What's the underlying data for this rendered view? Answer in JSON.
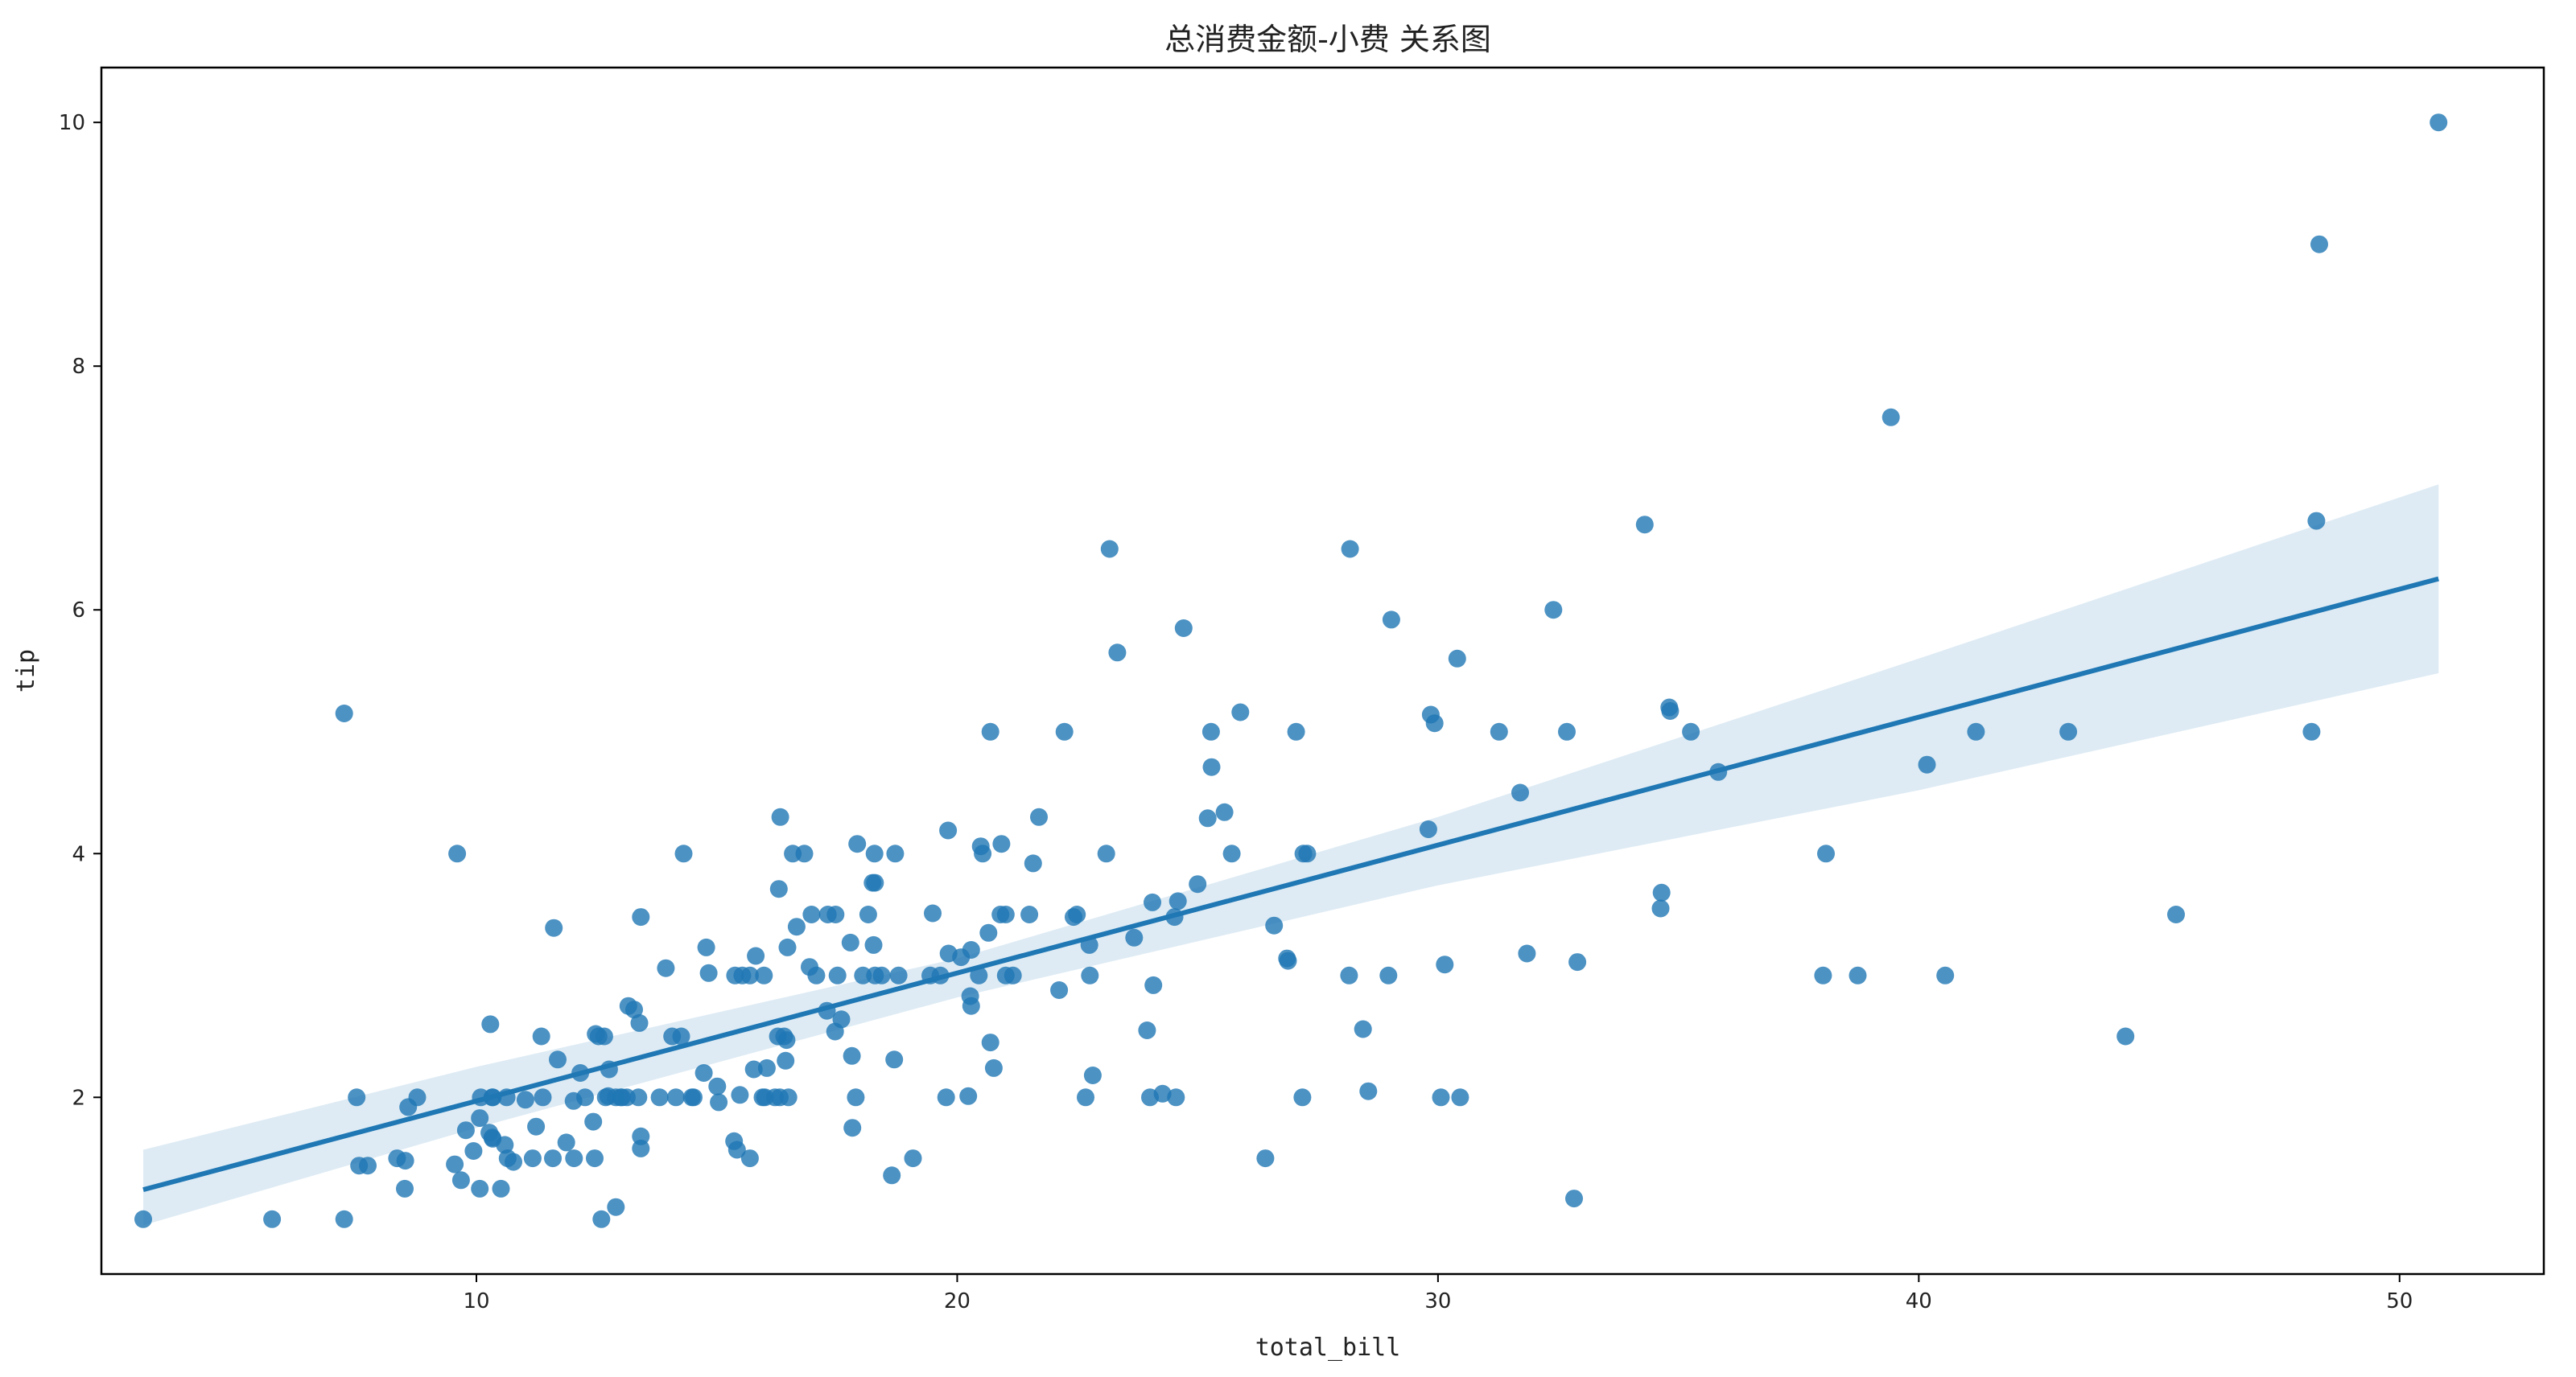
{
  "chart_data": {
    "type": "scatter",
    "title": "总消费金额-小费 关系图",
    "xlabel": "total_bill",
    "ylabel": "tip",
    "xlim": [
      2.2,
      53.0
    ],
    "ylim": [
      0.55,
      10.45
    ],
    "xticks": [
      10,
      20,
      30,
      40,
      50
    ],
    "yticks": [
      2,
      4,
      6,
      8,
      10
    ],
    "grid": false,
    "color": "#1f77b4",
    "regression": {
      "x_range": [
        3.07,
        50.81
      ],
      "intercept": 0.92,
      "slope": 0.105,
      "ci": [
        [
          3.07,
          0.95,
          1.57
        ],
        [
          10,
          1.75,
          2.25
        ],
        [
          20,
          2.82,
          3.14
        ],
        [
          30,
          3.74,
          4.3
        ],
        [
          40,
          4.52,
          5.6
        ],
        [
          50.81,
          5.48,
          7.03
        ]
      ]
    },
    "points": [
      [
        3.07,
        1.0
      ],
      [
        5.75,
        1.0
      ],
      [
        7.25,
        1.0
      ],
      [
        7.25,
        5.15
      ],
      [
        7.51,
        2.0
      ],
      [
        7.56,
        1.44
      ],
      [
        7.74,
        1.44
      ],
      [
        8.35,
        1.5
      ],
      [
        8.51,
        1.25
      ],
      [
        8.52,
        1.48
      ],
      [
        8.58,
        1.92
      ],
      [
        8.77,
        2.0
      ],
      [
        9.55,
        1.45
      ],
      [
        9.6,
        4.0
      ],
      [
        9.68,
        1.32
      ],
      [
        9.78,
        1.73
      ],
      [
        9.94,
        1.56
      ],
      [
        10.07,
        1.83
      ],
      [
        10.07,
        1.25
      ],
      [
        10.09,
        2.0
      ],
      [
        10.27,
        1.71
      ],
      [
        10.29,
        2.6
      ],
      [
        10.33,
        1.67
      ],
      [
        10.33,
        2.0
      ],
      [
        10.34,
        1.66
      ],
      [
        10.34,
        2.0
      ],
      [
        10.51,
        1.25
      ],
      [
        10.59,
        1.61
      ],
      [
        10.63,
        2.0
      ],
      [
        10.65,
        1.5
      ],
      [
        10.77,
        1.47
      ],
      [
        11.02,
        1.98
      ],
      [
        11.17,
        1.5
      ],
      [
        11.24,
        1.76
      ],
      [
        11.35,
        2.5
      ],
      [
        11.38,
        2.0
      ],
      [
        11.59,
        1.5
      ],
      [
        11.61,
        3.39
      ],
      [
        11.69,
        2.31
      ],
      [
        11.87,
        1.63
      ],
      [
        12.02,
        1.97
      ],
      [
        12.03,
        1.5
      ],
      [
        12.16,
        2.2
      ],
      [
        12.26,
        2.0
      ],
      [
        12.43,
        1.8
      ],
      [
        12.46,
        1.5
      ],
      [
        12.48,
        2.52
      ],
      [
        12.54,
        2.5
      ],
      [
        12.6,
        1.0
      ],
      [
        12.66,
        2.5
      ],
      [
        12.69,
        2.0
      ],
      [
        12.74,
        2.01
      ],
      [
        12.76,
        2.23
      ],
      [
        12.9,
        1.1
      ],
      [
        12.9,
        2.0
      ],
      [
        13.0,
        2.0
      ],
      [
        13.03,
        2.0
      ],
      [
        13.13,
        2.0
      ],
      [
        13.16,
        2.75
      ],
      [
        13.28,
        2.72
      ],
      [
        13.37,
        2.0
      ],
      [
        13.39,
        2.61
      ],
      [
        13.42,
        1.58
      ],
      [
        13.42,
        1.68
      ],
      [
        13.42,
        3.48
      ],
      [
        13.81,
        2.0
      ],
      [
        13.94,
        3.06
      ],
      [
        14.07,
        2.5
      ],
      [
        14.15,
        2.0
      ],
      [
        14.26,
        2.5
      ],
      [
        14.31,
        4.0
      ],
      [
        14.48,
        2.0
      ],
      [
        14.52,
        2.0
      ],
      [
        14.73,
        2.2
      ],
      [
        14.78,
        3.23
      ],
      [
        14.83,
        3.02
      ],
      [
        15.01,
        2.09
      ],
      [
        15.04,
        1.96
      ],
      [
        15.36,
        1.64
      ],
      [
        15.38,
        3.0
      ],
      [
        15.42,
        1.57
      ],
      [
        15.48,
        2.02
      ],
      [
        15.53,
        3.0
      ],
      [
        15.69,
        1.5
      ],
      [
        15.69,
        3.0
      ],
      [
        15.77,
        2.23
      ],
      [
        15.81,
        3.16
      ],
      [
        15.95,
        2.0
      ],
      [
        15.98,
        3.0
      ],
      [
        16.0,
        2.0
      ],
      [
        16.04,
        2.24
      ],
      [
        16.21,
        2.0
      ],
      [
        16.27,
        2.5
      ],
      [
        16.29,
        3.71
      ],
      [
        16.31,
        2.0
      ],
      [
        16.32,
        4.3
      ],
      [
        16.4,
        2.5
      ],
      [
        16.43,
        2.3
      ],
      [
        16.45,
        2.47
      ],
      [
        16.47,
        3.23
      ],
      [
        16.49,
        2.0
      ],
      [
        16.58,
        4.0
      ],
      [
        16.66,
        3.4
      ],
      [
        16.82,
        4.0
      ],
      [
        16.93,
        3.07
      ],
      [
        16.97,
        3.5
      ],
      [
        17.07,
        3.0
      ],
      [
        17.29,
        2.71
      ],
      [
        17.31,
        3.5
      ],
      [
        17.46,
        2.54
      ],
      [
        17.47,
        3.5
      ],
      [
        17.51,
        3.0
      ],
      [
        17.59,
        2.64
      ],
      [
        17.78,
        3.27
      ],
      [
        17.81,
        2.34
      ],
      [
        17.82,
        1.75
      ],
      [
        17.89,
        2.0
      ],
      [
        17.92,
        4.08
      ],
      [
        18.04,
        3.0
      ],
      [
        18.15,
        3.5
      ],
      [
        18.24,
        3.76
      ],
      [
        18.26,
        3.25
      ],
      [
        18.28,
        4.0
      ],
      [
        18.29,
        3.76
      ],
      [
        18.29,
        3.0
      ],
      [
        18.43,
        3.0
      ],
      [
        18.64,
        1.36
      ],
      [
        18.69,
        2.31
      ],
      [
        18.71,
        4.0
      ],
      [
        18.78,
        3.0
      ],
      [
        19.08,
        1.5
      ],
      [
        19.44,
        3.0
      ],
      [
        19.49,
        3.51
      ],
      [
        19.65,
        3.0
      ],
      [
        19.77,
        2.0
      ],
      [
        19.81,
        4.19
      ],
      [
        19.82,
        3.18
      ],
      [
        20.08,
        3.15
      ],
      [
        20.23,
        2.01
      ],
      [
        20.27,
        2.83
      ],
      [
        20.29,
        2.75
      ],
      [
        20.29,
        3.21
      ],
      [
        20.45,
        3.0
      ],
      [
        20.49,
        4.06
      ],
      [
        20.53,
        4.0
      ],
      [
        20.65,
        3.35
      ],
      [
        20.69,
        2.45
      ],
      [
        20.69,
        5.0
      ],
      [
        20.76,
        2.24
      ],
      [
        20.9,
        3.5
      ],
      [
        20.92,
        4.08
      ],
      [
        21.01,
        3.5
      ],
      [
        21.01,
        3.0
      ],
      [
        21.16,
        3.0
      ],
      [
        21.5,
        3.5
      ],
      [
        21.58,
        3.92
      ],
      [
        21.7,
        4.3
      ],
      [
        22.12,
        2.88
      ],
      [
        22.23,
        5.0
      ],
      [
        22.42,
        3.48
      ],
      [
        22.49,
        3.5
      ],
      [
        22.67,
        2.0
      ],
      [
        22.75,
        3.25
      ],
      [
        22.76,
        3.0
      ],
      [
        22.82,
        2.18
      ],
      [
        23.1,
        4.0
      ],
      [
        23.17,
        6.5
      ],
      [
        23.33,
        5.65
      ],
      [
        23.68,
        3.31
      ],
      [
        23.95,
        2.55
      ],
      [
        24.01,
        2.0
      ],
      [
        24.06,
        3.6
      ],
      [
        24.08,
        2.92
      ],
      [
        24.27,
        2.03
      ],
      [
        24.52,
        3.48
      ],
      [
        24.55,
        2.0
      ],
      [
        24.59,
        3.61
      ],
      [
        24.71,
        5.85
      ],
      [
        25.0,
        3.75
      ],
      [
        25.21,
        4.29
      ],
      [
        25.28,
        5.0
      ],
      [
        25.29,
        4.71
      ],
      [
        25.56,
        4.34
      ],
      [
        25.71,
        4.0
      ],
      [
        25.89,
        5.16
      ],
      [
        26.41,
        1.5
      ],
      [
        26.59,
        3.41
      ],
      [
        26.86,
        3.14
      ],
      [
        26.88,
        3.12
      ],
      [
        27.05,
        5.0
      ],
      [
        27.18,
        2.0
      ],
      [
        27.2,
        4.0
      ],
      [
        27.28,
        4.0
      ],
      [
        28.15,
        3.0
      ],
      [
        28.17,
        6.5
      ],
      [
        28.44,
        2.56
      ],
      [
        28.55,
        2.05
      ],
      [
        28.97,
        3.0
      ],
      [
        29.03,
        5.92
      ],
      [
        29.8,
        4.2
      ],
      [
        29.85,
        5.14
      ],
      [
        29.93,
        5.07
      ],
      [
        30.06,
        2.0
      ],
      [
        30.14,
        3.09
      ],
      [
        30.4,
        5.6
      ],
      [
        30.46,
        2.0
      ],
      [
        31.27,
        5.0
      ],
      [
        31.71,
        4.5
      ],
      [
        31.85,
        3.18
      ],
      [
        32.4,
        6.0
      ],
      [
        32.68,
        5.0
      ],
      [
        32.83,
        1.17
      ],
      [
        32.9,
        3.11
      ],
      [
        34.3,
        6.7
      ],
      [
        34.63,
        3.55
      ],
      [
        34.65,
        3.68
      ],
      [
        34.81,
        5.2
      ],
      [
        34.83,
        5.17
      ],
      [
        35.26,
        5.0
      ],
      [
        35.83,
        4.67
      ],
      [
        38.01,
        3.0
      ],
      [
        38.07,
        4.0
      ],
      [
        38.73,
        3.0
      ],
      [
        39.42,
        7.58
      ],
      [
        40.17,
        4.73
      ],
      [
        40.55,
        3.0
      ],
      [
        41.19,
        5.0
      ],
      [
        43.11,
        5.0
      ],
      [
        44.3,
        2.5
      ],
      [
        45.35,
        3.5
      ],
      [
        48.17,
        5.0
      ],
      [
        48.27,
        6.73
      ],
      [
        48.33,
        9.0
      ],
      [
        50.81,
        10.0
      ]
    ]
  }
}
